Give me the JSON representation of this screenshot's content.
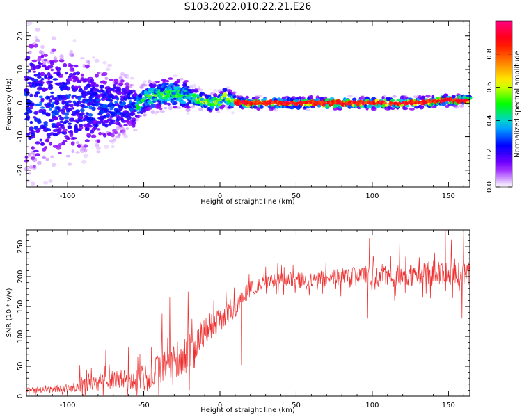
{
  "title": "S103.2022.010.22.21.E26",
  "chart_data": [
    {
      "type": "heatmap",
      "xlabel": "Height of straight line (km)",
      "ylabel": "Frequency (Hz)",
      "xlim": [
        -127,
        164
      ],
      "ylim": [
        -25,
        24.5
      ],
      "xticks": [
        -100,
        -50,
        0,
        50,
        100,
        150
      ],
      "yticks": [
        -20,
        -10,
        0,
        10,
        20
      ],
      "grid": false,
      "colorbar": {
        "label": "Normalized spectral amplitude",
        "range": [
          0,
          1
        ],
        "ticks": [
          0.0,
          0.2,
          0.4,
          0.6,
          0.8
        ],
        "colors": [
          "#ffffff",
          "#8a00ff",
          "#0000ff",
          "#00c8ff",
          "#00ff00",
          "#ffff00",
          "#ff8000",
          "#ff0000",
          "#ff0080"
        ]
      },
      "ridge": [
        [
          -127,
          0
        ],
        [
          -110,
          -1
        ],
        [
          -95,
          0
        ],
        [
          -80,
          -1.5
        ],
        [
          -65,
          -0.5
        ],
        [
          -55,
          -1
        ],
        [
          -48,
          1.5
        ],
        [
          -40,
          2.5
        ],
        [
          -32,
          3
        ],
        [
          -25,
          2.5
        ],
        [
          -20,
          2
        ],
        [
          -15,
          1.5
        ],
        [
          -10,
          0.5
        ],
        [
          -5,
          0
        ],
        [
          0,
          0.5
        ],
        [
          3,
          2
        ],
        [
          8,
          0.5
        ],
        [
          15,
          0
        ],
        [
          60,
          0
        ],
        [
          100,
          0
        ],
        [
          130,
          0
        ],
        [
          145,
          0.8
        ],
        [
          164,
          0.8
        ]
      ]
    },
    {
      "type": "line",
      "xlabel": "Height of straight line (km)",
      "ylabel": "SNR (10 * v/v)",
      "xlim": [
        -127,
        164
      ],
      "ylim": [
        0,
        278
      ],
      "xticks": [
        -100,
        -50,
        0,
        50,
        100,
        150
      ],
      "yticks": [
        0,
        50,
        100,
        150,
        200,
        250
      ],
      "grid": false,
      "color": "#ee3030",
      "trend": [
        [
          -127,
          10
        ],
        [
          -100,
          12
        ],
        [
          -90,
          18
        ],
        [
          -75,
          25
        ],
        [
          -60,
          28
        ],
        [
          -50,
          30
        ],
        [
          -40,
          45
        ],
        [
          -30,
          60
        ],
        [
          -20,
          70
        ],
        [
          -15,
          95
        ],
        [
          -10,
          105
        ],
        [
          -5,
          120
        ],
        [
          0,
          130
        ],
        [
          5,
          140
        ],
        [
          10,
          150
        ],
        [
          15,
          165
        ],
        [
          20,
          180
        ],
        [
          30,
          190
        ],
        [
          40,
          195
        ],
        [
          60,
          195
        ],
        [
          80,
          200
        ],
        [
          100,
          200
        ],
        [
          120,
          200
        ],
        [
          140,
          205
        ],
        [
          164,
          205
        ]
      ],
      "noise": [
        [
          -127,
          8
        ],
        [
          -100,
          12
        ],
        [
          -80,
          30
        ],
        [
          -60,
          35
        ],
        [
          -40,
          55
        ],
        [
          -20,
          60
        ],
        [
          0,
          45
        ],
        [
          20,
          25
        ],
        [
          60,
          25
        ],
        [
          100,
          35
        ],
        [
          140,
          40
        ],
        [
          164,
          40
        ]
      ],
      "peaks": [
        [
          -92,
          52
        ],
        [
          -75,
          78
        ],
        [
          -60,
          82
        ],
        [
          -45,
          82
        ],
        [
          -38,
          138
        ],
        [
          -33,
          165
        ],
        [
          -21,
          175
        ],
        [
          -4,
          160
        ],
        [
          4,
          175
        ],
        [
          14,
          175
        ],
        [
          38,
          222
        ],
        [
          98,
          265
        ],
        [
          118,
          255
        ],
        [
          148,
          278
        ],
        [
          152,
          262
        ],
        [
          160,
          275
        ]
      ],
      "dips": [
        [
          14,
          52
        ],
        [
          -20,
          10
        ],
        [
          -55,
          5
        ],
        [
          97,
          130
        ],
        [
          159,
          130
        ]
      ]
    }
  ]
}
